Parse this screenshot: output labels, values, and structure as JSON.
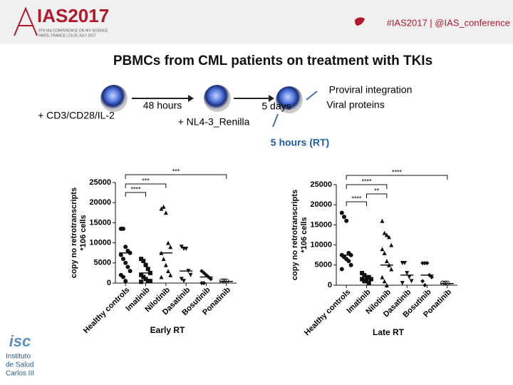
{
  "header": {
    "logo": "IAS2017",
    "logo_sub": "9TH IAS CONFERENCE ON HIV SCIENCE",
    "logo_sub2": "PARIS, FRANCE | 23-26 JULY 2017",
    "hashtag": "#IAS2017 | @IAS_conference"
  },
  "title": "PBMCs from CML patients on treatment with TKIs",
  "diagram": {
    "stim": "+ CD3/CD28/IL-2",
    "t1": "48 hours",
    "virus": "+ NL4-3_Renilla",
    "t2": "5 days",
    "out1": "Proviral integration",
    "out2": "Viral proteins",
    "t3": "5 hours (RT)"
  },
  "footer_logo": {
    "mark": "isc",
    "l1": "Instituto",
    "l2": "de Salud",
    "l3": "Carlos III"
  },
  "chart_data": [
    {
      "type": "dot",
      "ylabel": "copy no retrotranscripts",
      "ylabel2": "*106 cells",
      "xlabel": "Early RT",
      "categories": [
        "Healthy controls",
        "Imatinib",
        "Nilotinib",
        "Dasatinib",
        "Bosutinib",
        "Ponatinib"
      ],
      "points": [
        [
          13500,
          13500,
          9000,
          8000,
          7500,
          7000,
          6000,
          5000,
          4000,
          3000,
          2000,
          1500,
          500
        ],
        [
          6000,
          5500,
          4500,
          3500,
          2500,
          2000,
          1500,
          1000,
          500,
          500,
          300
        ],
        [
          18500,
          19000,
          17500,
          10000,
          9000,
          7500,
          6000,
          4500,
          3000,
          2000,
          1500
        ],
        [
          9000,
          8500,
          8500,
          3000,
          2000,
          1000,
          500
        ],
        [
          3000,
          2500,
          2000,
          1500,
          1000,
          0,
          0
        ],
        [
          500,
          500,
          500
        ]
      ],
      "means": [
        7500,
        2500,
        7500,
        3000,
        1500,
        400
      ],
      "annotations": [
        "***",
        "***",
        "****"
      ],
      "ylim": [
        0,
        25000
      ],
      "yticks": [
        0,
        5000,
        10000,
        15000,
        20000,
        25000
      ],
      "color": "#111111"
    },
    {
      "type": "dot",
      "ylabel": "copy no retrotranscripts",
      "ylabel2": "*106 cells",
      "xlabel": "Late RT",
      "categories": [
        "Healthy controls",
        "Imatinib",
        "Nilotinib",
        "Dasatinib",
        "Bosutinib",
        "Ponatinib"
      ],
      "points": [
        [
          18000,
          17000,
          16000,
          8000,
          7500,
          7500,
          7000,
          6500,
          6000,
          5000,
          4000
        ],
        [
          3000,
          2500,
          2000,
          2000,
          1500,
          1500,
          1000,
          1000,
          500
        ],
        [
          16000,
          13000,
          12500,
          12000,
          10000,
          9000,
          8000,
          6000,
          5000,
          4000,
          2000,
          1000,
          0
        ],
        [
          5500,
          5500,
          3000,
          2000,
          1000,
          500
        ],
        [
          5500,
          5500,
          5500,
          2500,
          2000,
          1000,
          0
        ],
        [
          500,
          500,
          500
        ]
      ],
      "means": [
        7500,
        1500,
        5000,
        2500,
        2500,
        400
      ],
      "annotations": [
        "****",
        "****",
        "**",
        "****"
      ],
      "ylim": [
        0,
        25000
      ],
      "yticks": [
        0,
        5000,
        10000,
        15000,
        20000,
        25000
      ],
      "color": "#111111"
    }
  ]
}
